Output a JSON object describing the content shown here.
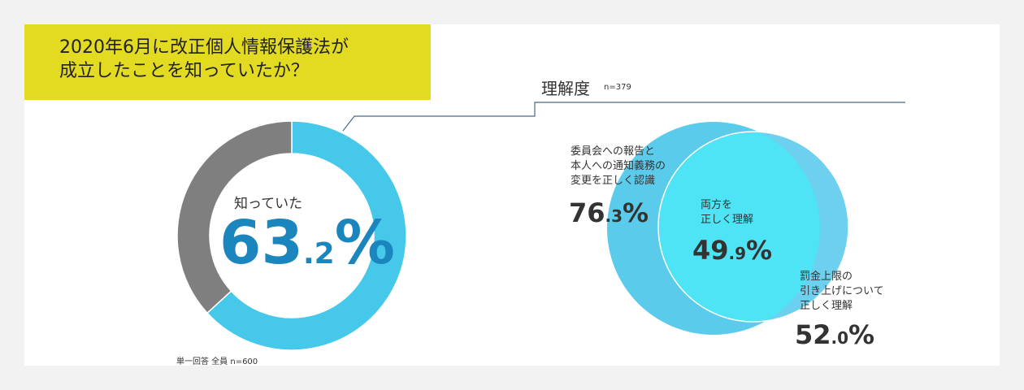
{
  "title": "2020年6月に改正個人情報保護法が\n成立したことを知っていたか？",
  "donut": {
    "center_label": "知っていた",
    "pct_int": "63",
    "pct_dec": ".2",
    "pct_sign": "%",
    "footnote": "単一回答 全員 n=600"
  },
  "understanding": {
    "title": "理解度",
    "n": "n=379",
    "sets": [
      {
        "label": "委員会への報告と\n本人への通知義務の\n変更を正しく認識",
        "pct_int": "76",
        "pct_dec": ".3",
        "pct_sign": "%"
      },
      {
        "label": "両方を\n正しく理解",
        "pct_int": "49",
        "pct_dec": ".9",
        "pct_sign": "%"
      },
      {
        "label": "罰金上限の\n引き上げについて\n正しく理解",
        "pct_int": "52",
        "pct_dec": ".0",
        "pct_sign": "%"
      }
    ]
  },
  "colors": {
    "knew": "#45c8e9",
    "other": "#7f7f7f",
    "title_bg": "#e3db22",
    "venn_a": "#5bcbeb",
    "venn_b": "#6ed0ef",
    "venn_overlap": "#4ee3f5",
    "leader": "#4a6a8a",
    "pct_blue": "#1a86bd"
  },
  "chart_data": [
    {
      "type": "pie",
      "categories": [
        "知っていた",
        ""
      ],
      "values": [
        63.2,
        36.8
      ]
    },
    {
      "type": "venn",
      "n": 379,
      "sets": [
        {
          "label": "委員会への報告と本人への通知義務の変更を正しく認識",
          "value": 76.3
        },
        {
          "label": "罰金上限の引き上げについて正しく理解",
          "value": 52.0
        }
      ],
      "intersection": {
        "label": "両方を正しく理解",
        "value": 49.9
      }
    }
  ]
}
